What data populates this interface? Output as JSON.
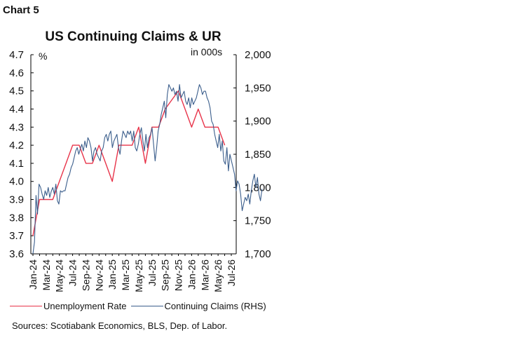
{
  "chart_label": "Chart 5",
  "chart_data": {
    "type": "line",
    "title": "US Continuing Claims & UR",
    "left_unit": "%",
    "right_unit": "in 000s",
    "left_axis": {
      "min": 3.6,
      "max": 4.7,
      "ticks": [
        "3.6",
        "3.7",
        "3.8",
        "3.9",
        "4.0",
        "4.1",
        "4.2",
        "4.3",
        "4.4",
        "4.5",
        "4.6",
        "4.7"
      ]
    },
    "right_axis": {
      "min": 1700,
      "max": 2000,
      "ticks": [
        "1,700",
        "1,750",
        "1,800",
        "1,850",
        "1,900",
        "1,950",
        "2,000"
      ]
    },
    "x_axis": {
      "start": "Jan-24",
      "end": "Jul-26",
      "tick_labels": [
        "Jan-24",
        "Mar-24",
        "May-24",
        "Jul-24",
        "Sep-24",
        "Nov-24",
        "Jan-25",
        "Mar-25",
        "May-25",
        "Jul-25",
        "Sep-25",
        "Nov-25",
        "Jan-26",
        "Mar-26",
        "May-26",
        "Jul-26"
      ]
    },
    "series": [
      {
        "name": "Unemployment Rate",
        "axis": "left",
        "color": "#e8344a",
        "x": [
          "Jan-24",
          "Feb-24",
          "Mar-24",
          "Apr-24",
          "May-24",
          "Jun-24",
          "Jul-24",
          "Aug-24",
          "Sep-24",
          "Oct-24",
          "Nov-24",
          "Dec-24",
          "Jan-25",
          "Feb-25",
          "Mar-25",
          "Apr-25",
          "May-25",
          "Jun-25",
          "Jul-25",
          "Aug-25",
          "Sep-25",
          "Oct-25",
          "Nov-25",
          "Dec-25",
          "Jan-26",
          "Feb-26",
          "Mar-26",
          "Apr-26",
          "May-26",
          "Jun-26"
        ],
        "values": [
          3.7,
          3.9,
          3.9,
          3.9,
          4.0,
          4.1,
          4.2,
          4.2,
          4.1,
          4.1,
          4.2,
          4.1,
          4.0,
          4.2,
          4.2,
          4.2,
          4.3,
          4.1,
          4.3,
          4.3,
          4.4,
          4.45,
          4.5,
          4.4,
          4.3,
          4.4,
          4.3,
          4.3,
          4.3,
          4.2
        ]
      },
      {
        "name": "Continuing Claims (RHS)",
        "axis": "right",
        "color": "#3b5e8c",
        "x_start": "Jan-24",
        "points_per_month": 4.33,
        "values": [
          1700,
          1718,
          1788,
          1760,
          1805,
          1800,
          1790,
          1782,
          1795,
          1788,
          1800,
          1785,
          1794,
          1800,
          1790,
          1805,
          1780,
          1775,
          1795,
          1793,
          1795,
          1795,
          1805,
          1815,
          1820,
          1830,
          1835,
          1845,
          1855,
          1860,
          1850,
          1858,
          1865,
          1855,
          1870,
          1860,
          1875,
          1870,
          1860,
          1840,
          1855,
          1860,
          1850,
          1845,
          1840,
          1855,
          1860,
          1875,
          1880,
          1870,
          1880,
          1885,
          1860,
          1870,
          1875,
          1880,
          1860,
          1850,
          1870,
          1885,
          1880,
          1875,
          1885,
          1880,
          1885,
          1870,
          1885,
          1860,
          1855,
          1865,
          1880,
          1890,
          1870,
          1855,
          1880,
          1860,
          1875,
          1880,
          1890,
          1865,
          1840,
          1860,
          1885,
          1895,
          1910,
          1920,
          1930,
          1905,
          1940,
          1955,
          1950,
          1945,
          1950,
          1940,
          1945,
          1930,
          1955,
          1935,
          1940,
          1945,
          1930,
          1925,
          1935,
          1920,
          1935,
          1925,
          1930,
          1935,
          1945,
          1955,
          1950,
          1940,
          1945,
          1945,
          1935,
          1930,
          1920,
          1900,
          1895,
          1880,
          1870,
          1860,
          1880,
          1855,
          1870,
          1840,
          1835,
          1860,
          1825,
          1850,
          1840,
          1830,
          1820,
          1795,
          1810,
          1805,
          1790,
          1765,
          1775,
          1785,
          1780,
          1790,
          1775,
          1795,
          1810,
          1820,
          1800,
          1815,
          1790,
          1780,
          1798
        ]
      }
    ]
  },
  "sources": "Sources: Scotiabank Economics, BLS, Dep. of Labor."
}
